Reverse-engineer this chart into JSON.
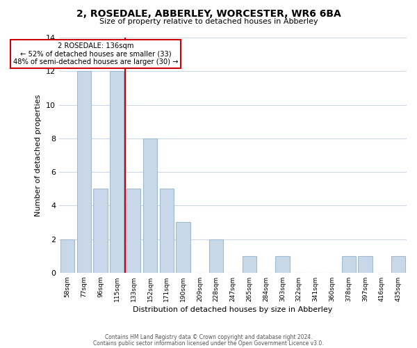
{
  "title": "2, ROSEDALE, ABBERLEY, WORCESTER, WR6 6BA",
  "subtitle": "Size of property relative to detached houses in Abberley",
  "xlabel": "Distribution of detached houses by size in Abberley",
  "ylabel": "Number of detached properties",
  "bin_labels": [
    "58sqm",
    "77sqm",
    "96sqm",
    "115sqm",
    "133sqm",
    "152sqm",
    "171sqm",
    "190sqm",
    "209sqm",
    "228sqm",
    "247sqm",
    "265sqm",
    "284sqm",
    "303sqm",
    "322sqm",
    "341sqm",
    "360sqm",
    "378sqm",
    "397sqm",
    "416sqm",
    "435sqm"
  ],
  "bar_heights": [
    2,
    12,
    5,
    12,
    5,
    8,
    5,
    3,
    0,
    2,
    0,
    1,
    0,
    1,
    0,
    0,
    0,
    1,
    1,
    0,
    1
  ],
  "bar_color": "#c8d8e8",
  "bar_edge_color": "#a0b8d0",
  "highlight_line_color": "#cc0000",
  "annotation_title": "2 ROSEDALE: 136sqm",
  "annotation_line1": "← 52% of detached houses are smaller (33)",
  "annotation_line2": "48% of semi-detached houses are larger (30) →",
  "annotation_box_edge_color": "#cc0000",
  "ylim": [
    0,
    14
  ],
  "yticks": [
    0,
    2,
    4,
    6,
    8,
    10,
    12,
    14
  ],
  "footer_line1": "Contains HM Land Registry data © Crown copyright and database right 2024.",
  "footer_line2": "Contains public sector information licensed under the Open Government Licence v3.0.",
  "background_color": "#ffffff",
  "grid_color": "#ccd8e4"
}
